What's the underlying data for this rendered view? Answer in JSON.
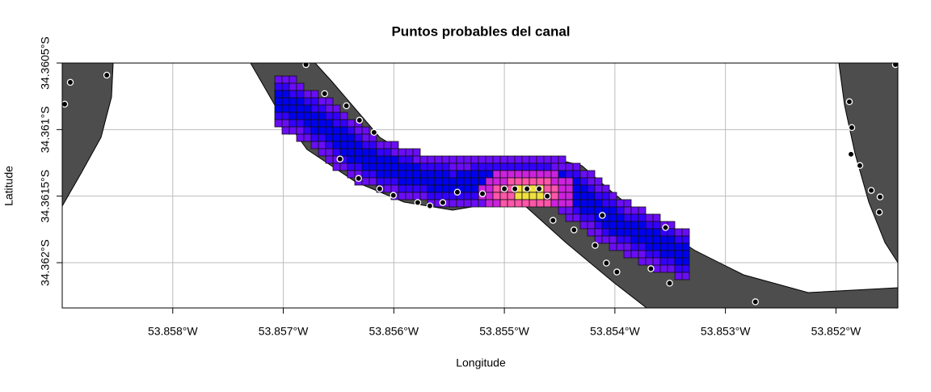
{
  "chart_data": {
    "type": "map",
    "title": "Puntos probables del canal",
    "x_label": "Longitude",
    "y_label": "Latitude",
    "xlim": [
      -53.859,
      -53.85144
    ],
    "ylim": [
      -34.36234,
      -34.3605
    ],
    "xticks": [
      {
        "value": -53.858,
        "label": "53.858°W"
      },
      {
        "value": -53.857,
        "label": "53.857°W"
      },
      {
        "value": -53.856,
        "label": "53.856°W"
      },
      {
        "value": -53.855,
        "label": "53.855°W"
      },
      {
        "value": -53.854,
        "label": "53.854°W"
      },
      {
        "value": -53.853,
        "label": "53.853°W"
      },
      {
        "value": -53.852,
        "label": "53.852°W"
      }
    ],
    "yticks": [
      {
        "value": -34.3605,
        "label": "34.3605°S"
      },
      {
        "value": -34.361,
        "label": "34.361°S"
      },
      {
        "value": -34.3615,
        "label": "34.3615°S"
      },
      {
        "value": -34.362,
        "label": "34.362°S"
      }
    ],
    "grid": true,
    "points": {
      "color": "#000000",
      "x": [
        -53.856795,
        -53.856626,
        -53.856429,
        -53.856311,
        -53.856179,
        -53.856487,
        -53.856319,
        -53.856128,
        -53.856004,
        -53.855784,
        -53.855674,
        -53.855557,
        -53.855425,
        -53.855198,
        -53.855,
        -53.854905,
        -53.854795,
        -53.854685,
        -53.854612,
        -53.85456,
        -53.85437,
        -53.854179,
        -53.854077,
        -53.854114,
        -53.853982,
        -53.853674,
        -53.853505,
        -53.853542,
        -53.852729,
        -53.858927,
        -53.858597,
        -53.858978,
        -53.851879,
        -53.851857,
        -53.851864,
        -53.851784,
        -53.851681,
        -53.851601,
        -53.851608,
        -53.851462
      ],
      "y": [
        -34.360512,
        -34.36073,
        -34.360821,
        -34.36093,
        -34.361021,
        -34.361221,
        -34.361367,
        -34.361445,
        -34.361494,
        -34.361548,
        -34.361573,
        -34.361548,
        -34.36147,
        -34.361482,
        -34.361445,
        -34.361445,
        -34.361445,
        -34.361445,
        -34.3615,
        -34.361682,
        -34.361754,
        -34.36187,
        -34.362003,
        -34.361645,
        -34.36207,
        -34.362045,
        -34.362154,
        -34.361736,
        -34.362294,
        -34.360645,
        -34.360591,
        -34.360809,
        -34.360791,
        -34.360985,
        -34.361185,
        -34.36127,
        -34.361457,
        -34.361506,
        -34.361621,
        -34.360512
      ]
    }
  }
}
